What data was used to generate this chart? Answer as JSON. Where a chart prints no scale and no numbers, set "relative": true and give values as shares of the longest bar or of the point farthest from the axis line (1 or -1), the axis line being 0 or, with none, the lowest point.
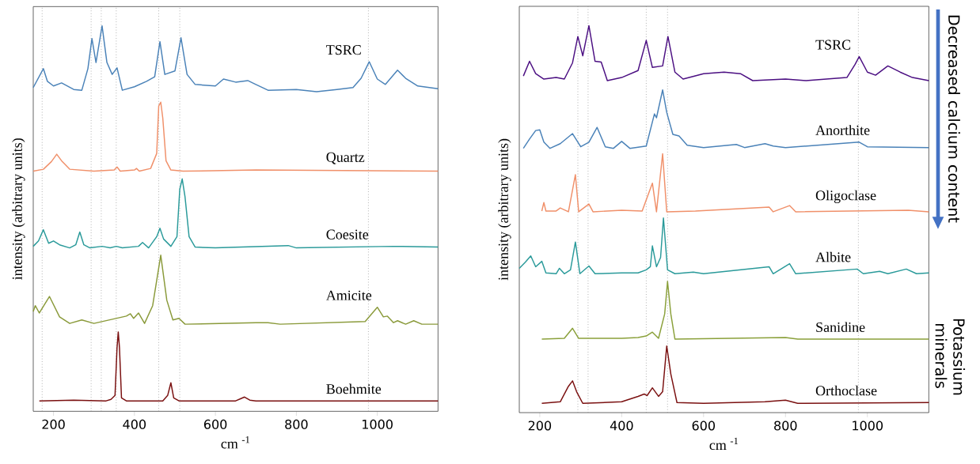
{
  "chart_data": [
    {
      "type": "line",
      "relative": true,
      "xlabel": "cm $^{-1}$",
      "ylabel": "intensity (arbitrary units)",
      "xlim": [
        150,
        1150
      ],
      "xticks": [
        200,
        400,
        600,
        800,
        1000
      ],
      "ref_lines": [
        {
          "axis": "x",
          "value": 172,
          "color": "#888888",
          "line_style": "dotted"
        },
        {
          "axis": "x",
          "value": 293,
          "color": "#888888",
          "line_style": "dotted"
        },
        {
          "axis": "x",
          "value": 318,
          "color": "#888888",
          "line_style": "dotted"
        },
        {
          "axis": "x",
          "value": 355,
          "color": "#888888",
          "line_style": "dotted"
        },
        {
          "axis": "x",
          "value": 460,
          "color": "#888888",
          "line_style": "dotted"
        },
        {
          "axis": "x",
          "value": 512,
          "color": "#888888",
          "line_style": "dotted"
        },
        {
          "axis": "x",
          "value": 978,
          "color": "#888888",
          "line_style": "dotted"
        }
      ],
      "series": [
        {
          "name": "TSRC",
          "color": "#4a82b8",
          "x": [
            150,
            175,
            185,
            200,
            220,
            250,
            270,
            285,
            295,
            305,
            320,
            332,
            345,
            357,
            370,
            400,
            430,
            450,
            463,
            475,
            500,
            515,
            530,
            550,
            600,
            620,
            650,
            680,
            700,
            730,
            800,
            850,
            900,
            940,
            960,
            980,
            1000,
            1020,
            1050,
            1070,
            1100,
            1150
          ],
          "values": [
            0.84,
            0.889,
            0.856,
            0.844,
            0.852,
            0.835,
            0.833,
            0.889,
            0.967,
            0.905,
            1.0,
            0.905,
            0.874,
            0.891,
            0.833,
            0.842,
            0.856,
            0.868,
            0.959,
            0.874,
            0.883,
            0.969,
            0.874,
            0.848,
            0.844,
            0.862,
            0.854,
            0.858,
            0.848,
            0.833,
            0.835,
            0.829,
            0.835,
            0.84,
            0.864,
            0.907,
            0.862,
            0.848,
            0.885,
            0.864,
            0.844,
            0.837
          ]
        },
        {
          "name": "Quartz",
          "color": "#f0906a",
          "x": [
            150,
            175,
            195,
            208,
            220,
            240,
            300,
            350,
            357,
            365,
            400,
            405,
            412,
            440,
            455,
            460,
            465,
            470,
            478,
            490,
            520,
            700,
            1150
          ],
          "values": [
            0.623,
            0.628,
            0.648,
            0.667,
            0.65,
            0.628,
            0.623,
            0.626,
            0.634,
            0.623,
            0.626,
            0.63,
            0.623,
            0.63,
            0.669,
            0.792,
            0.802,
            0.761,
            0.65,
            0.626,
            0.623,
            0.626,
            0.623
          ]
        },
        {
          "name": "Coesite",
          "color": "#2a9a9a",
          "x": [
            150,
            163,
            175,
            188,
            200,
            215,
            240,
            255,
            265,
            275,
            290,
            320,
            340,
            355,
            370,
            410,
            420,
            435,
            455,
            463,
            472,
            490,
            505,
            512,
            518,
            525,
            535,
            550,
            600,
            780,
            800,
            1040,
            1150
          ],
          "values": [
            0.428,
            0.442,
            0.471,
            0.436,
            0.442,
            0.432,
            0.424,
            0.432,
            0.465,
            0.432,
            0.424,
            0.428,
            0.424,
            0.428,
            0.424,
            0.428,
            0.438,
            0.424,
            0.453,
            0.475,
            0.447,
            0.428,
            0.453,
            0.576,
            0.603,
            0.556,
            0.453,
            0.426,
            0.424,
            0.43,
            0.424,
            0.428,
            0.426
          ]
        },
        {
          "name": "Amicite",
          "color": "#8a9a3a",
          "x": [
            150,
            155,
            165,
            190,
            215,
            240,
            270,
            300,
            380,
            390,
            398,
            410,
            425,
            445,
            465,
            480,
            495,
            510,
            525,
            700,
            730,
            760,
            970,
            1000,
            1015,
            1025,
            1040,
            1050,
            1070,
            1090,
            1110,
            1150
          ],
          "values": [
            0.259,
            0.274,
            0.255,
            0.298,
            0.245,
            0.228,
            0.237,
            0.228,
            0.247,
            0.253,
            0.241,
            0.255,
            0.228,
            0.274,
            0.405,
            0.288,
            0.237,
            0.241,
            0.226,
            0.23,
            0.23,
            0.226,
            0.233,
            0.27,
            0.245,
            0.247,
            0.23,
            0.235,
            0.226,
            0.235,
            0.226,
            0.226
          ]
        },
        {
          "name": "Boehmite",
          "color": "#7a1010",
          "x": [
            165,
            250,
            330,
            342,
            352,
            357,
            360,
            363,
            368,
            380,
            470,
            482,
            490,
            497,
            510,
            650,
            663,
            672,
            685,
            700,
            1150
          ],
          "values": [
            0.027,
            0.029,
            0.027,
            0.031,
            0.041,
            0.165,
            0.206,
            0.165,
            0.035,
            0.027,
            0.027,
            0.041,
            0.074,
            0.035,
            0.027,
            0.027,
            0.033,
            0.037,
            0.029,
            0.027,
            0.027
          ]
        }
      ]
    },
    {
      "type": "line",
      "relative": true,
      "xlabel": "cm $^{-1}$",
      "ylabel": "intensity (arbitrary units)",
      "xlim": [
        150,
        1150
      ],
      "xticks": [
        200,
        400,
        600,
        800,
        1000
      ],
      "annotations": [
        "Decreased calcium content",
        "Potassium minerals"
      ],
      "ref_lines": [
        {
          "axis": "x",
          "value": 293,
          "color": "#888888",
          "line_style": "dotted"
        },
        {
          "axis": "x",
          "value": 318,
          "color": "#888888",
          "line_style": "dotted"
        },
        {
          "axis": "x",
          "value": 460,
          "color": "#888888",
          "line_style": "dotted"
        },
        {
          "axis": "x",
          "value": 512,
          "color": "#888888",
          "line_style": "dotted"
        },
        {
          "axis": "x",
          "value": 978,
          "color": "#888888",
          "line_style": "dotted"
        }
      ],
      "series": [
        {
          "name": "TSRC",
          "color": "#4b0f82",
          "x": [
            160,
            175,
            190,
            210,
            240,
            260,
            280,
            293,
            305,
            320,
            335,
            350,
            365,
            400,
            440,
            460,
            475,
            500,
            513,
            530,
            550,
            600,
            650,
            690,
            720,
            800,
            850,
            950,
            970,
            980,
            1000,
            1020,
            1050,
            1080,
            1110,
            1150
          ],
          "values": [
            0.87,
            0.908,
            0.876,
            0.862,
            0.866,
            0.862,
            0.904,
            0.972,
            0.922,
            1.0,
            0.908,
            0.906,
            0.858,
            0.866,
            0.884,
            0.962,
            0.892,
            0.896,
            0.972,
            0.88,
            0.862,
            0.876,
            0.88,
            0.876,
            0.858,
            0.862,
            0.858,
            0.866,
            0.9,
            0.92,
            0.88,
            0.872,
            0.896,
            0.88,
            0.866,
            0.858
          ]
        },
        {
          "name": "Anorthite",
          "color": "#4a82b8",
          "x": [
            160,
            175,
            190,
            200,
            210,
            225,
            250,
            280,
            300,
            320,
            340,
            360,
            380,
            400,
            420,
            460,
            480,
            485,
            500,
            510,
            525,
            540,
            560,
            600,
            680,
            700,
            750,
            770,
            800,
            980,
            1000,
            1150
          ],
          "values": [
            0.683,
            0.707,
            0.729,
            0.731,
            0.699,
            0.683,
            0.695,
            0.721,
            0.687,
            0.699,
            0.737,
            0.687,
            0.683,
            0.701,
            0.683,
            0.689,
            0.772,
            0.762,
            0.834,
            0.776,
            0.719,
            0.715,
            0.691,
            0.685,
            0.693,
            0.685,
            0.695,
            0.689,
            0.685,
            0.699,
            0.687,
            0.685
          ]
        },
        {
          "name": "Oligoclase",
          "color": "#f0906a",
          "x": [
            205,
            210,
            215,
            240,
            250,
            270,
            287,
            295,
            320,
            330,
            400,
            450,
            475,
            485,
            500,
            510,
            580,
            760,
            770,
            810,
            825,
            1100,
            1150
          ],
          "values": [
            0.521,
            0.543,
            0.521,
            0.521,
            0.529,
            0.519,
            0.615,
            0.519,
            0.539,
            0.519,
            0.523,
            0.521,
            0.593,
            0.519,
            0.669,
            0.519,
            0.521,
            0.531,
            0.519,
            0.535,
            0.519,
            0.523,
            0.519
          ]
        },
        {
          "name": "Albite",
          "color": "#2a9a9a",
          "x": [
            150,
            165,
            178,
            190,
            205,
            215,
            240,
            248,
            260,
            275,
            287,
            298,
            320,
            335,
            400,
            440,
            460,
            470,
            475,
            485,
            495,
            502,
            512,
            530,
            575,
            600,
            760,
            770,
            810,
            825,
            975,
            990,
            1030,
            1050,
            1095,
            1120,
            1150
          ],
          "values": [
            0.373,
            0.389,
            0.405,
            0.377,
            0.391,
            0.361,
            0.359,
            0.373,
            0.359,
            0.369,
            0.441,
            0.359,
            0.379,
            0.359,
            0.361,
            0.361,
            0.369,
            0.377,
            0.431,
            0.377,
            0.401,
            0.503,
            0.369,
            0.359,
            0.363,
            0.359,
            0.377,
            0.359,
            0.385,
            0.359,
            0.371,
            0.359,
            0.365,
            0.359,
            0.371,
            0.359,
            0.361
          ]
        },
        {
          "name": "Sanidine",
          "color": "#8aa03a",
          "x": [
            205,
            260,
            280,
            295,
            400,
            440,
            460,
            475,
            490,
            505,
            512,
            520,
            530,
            800,
            830,
            1150
          ],
          "values": [
            0.19,
            0.192,
            0.218,
            0.192,
            0.192,
            0.194,
            0.198,
            0.208,
            0.192,
            0.255,
            0.339,
            0.255,
            0.19,
            0.194,
            0.19,
            0.19
          ]
        },
        {
          "name": "Orthoclase",
          "color": "#7a1010",
          "x": [
            205,
            250,
            270,
            280,
            290,
            305,
            400,
            440,
            455,
            462,
            475,
            490,
            500,
            510,
            520,
            535,
            600,
            750,
            800,
            830,
            1150
          ],
          "values": [
            0.024,
            0.028,
            0.068,
            0.082,
            0.054,
            0.024,
            0.028,
            0.042,
            0.048,
            0.044,
            0.064,
            0.042,
            0.054,
            0.172,
            0.1,
            0.026,
            0.024,
            0.028,
            0.032,
            0.024,
            0.026
          ]
        }
      ]
    }
  ]
}
